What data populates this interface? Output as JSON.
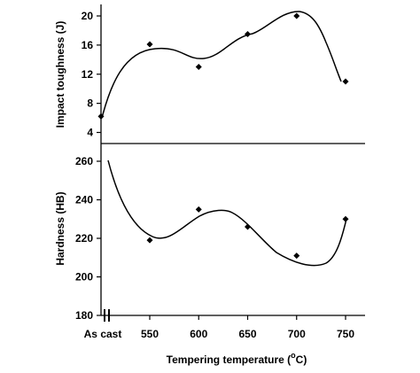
{
  "chart_data": [
    {
      "type": "scatter",
      "ylabel": "Impact toughness (J)",
      "ylim": [
        3,
        21.5
      ],
      "y_ticks": [
        4,
        8,
        12,
        16,
        20
      ],
      "series": [
        {
          "marker": "diamond",
          "points": [
            {
              "x": "As cast",
              "y": 6.2
            },
            {
              "x": 550,
              "y": 16.1
            },
            {
              "x": 600,
              "y": 13.0
            },
            {
              "x": 650,
              "y": 17.5
            },
            {
              "x": 700,
              "y": 20.0
            },
            {
              "x": 750,
              "y": 11.0
            }
          ],
          "trendline": "smooth fitted curve"
        }
      ],
      "grid": false
    },
    {
      "type": "scatter",
      "ylabel": "Hardness (HB)",
      "xlabel": "Tempering temperature (°C)",
      "ylim": [
        180,
        265
      ],
      "y_ticks": [
        180,
        200,
        220,
        240,
        260
      ],
      "x_ticks": [
        "As cast",
        "550",
        "600",
        "650",
        "700",
        "750"
      ],
      "series": [
        {
          "marker": "diamond",
          "points": [
            {
              "x": 550,
              "y": 219
            },
            {
              "x": 600,
              "y": 235
            },
            {
              "x": 650,
              "y": 226
            },
            {
              "x": 700,
              "y": 211
            },
            {
              "x": 750,
              "y": 230
            }
          ],
          "trendline": "smooth fitted curve"
        }
      ],
      "grid": false
    }
  ],
  "xlabel_parts": {
    "before": "Tempering temperature (",
    "superscript": "o",
    "after": "C)"
  },
  "colors": {
    "ink": "#000000",
    "background": "#ffffff"
  }
}
